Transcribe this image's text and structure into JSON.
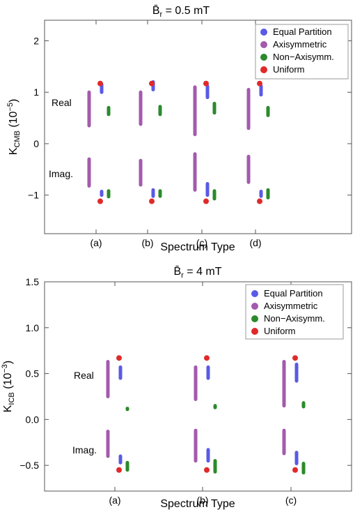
{
  "chart_data": [
    {
      "type": "scatter",
      "title": "B̄r = 0.5 mT",
      "title_main": "B̄",
      "title_sub": "r",
      "title_rest": " = 0.5 mT",
      "xlabel": "Spectrum Type",
      "ylabel_main": "K",
      "ylabel_sub": "CMB",
      "ylabel_rest": "  (10",
      "ylabel_exp": "−5",
      "ylabel_close": ")",
      "ylim": [
        -1.75,
        2.4
      ],
      "yticks": [
        2,
        1,
        0,
        -1
      ],
      "ytick_labels": [
        "2",
        "1",
        "0",
        "−1"
      ],
      "categories": [
        "(a)",
        "(b)",
        "(c)",
        "(d)"
      ],
      "annotations": [
        "Real",
        "Imag."
      ],
      "legend_position": "top-right",
      "legend": [
        "Equal Partition",
        "Axisymmetric",
        "Non−Axisymm.",
        "Uniform"
      ],
      "series": [
        {
          "name": "Equal Partition",
          "color": "#5a5ae6",
          "kind": "range",
          "real": [
            [
              1.0,
              1.15
            ],
            [
              1.05,
              1.2
            ],
            [
              0.9,
              1.12
            ],
            [
              0.95,
              1.12
            ]
          ],
          "imag": [
            [
              -0.93,
              -1.0
            ],
            [
              -0.9,
              -1.02
            ],
            [
              -0.78,
              -1.0
            ],
            [
              -0.93,
              -1.02
            ]
          ]
        },
        {
          "name": "Axisymmetric",
          "color": "#a35aad",
          "kind": "range",
          "real": [
            [
              0.35,
              1.0
            ],
            [
              0.38,
              1.0
            ],
            [
              0.18,
              1.1
            ],
            [
              0.3,
              1.05
            ]
          ],
          "imag": [
            [
              -0.3,
              -0.82
            ],
            [
              -0.33,
              -0.8
            ],
            [
              -0.2,
              -0.9
            ],
            [
              -0.25,
              -0.75
            ]
          ]
        },
        {
          "name": "Non−Axisymm.",
          "color": "#2b8a2b",
          "kind": "range",
          "real": [
            [
              0.57,
              0.7
            ],
            [
              0.57,
              0.72
            ],
            [
              0.6,
              0.78
            ],
            [
              0.55,
              0.7
            ]
          ],
          "imag": [
            [
              -0.92,
              -1.03
            ],
            [
              -0.92,
              -1.02
            ],
            [
              -0.92,
              -1.07
            ],
            [
              -0.9,
              -1.05
            ]
          ]
        },
        {
          "name": "Uniform",
          "color": "#e02a2a",
          "kind": "point",
          "real": [
            1.17,
            1.17,
            1.17,
            1.17
          ],
          "imag": [
            -1.12,
            -1.12,
            -1.12,
            -1.12
          ]
        }
      ]
    },
    {
      "type": "scatter",
      "title": "B̄r = 4 mT",
      "title_main": "B̄",
      "title_sub": "r",
      "title_rest": " = 4 mT",
      "xlabel": "Spectrum Type",
      "ylabel_main": "K",
      "ylabel_sub": "ICB",
      "ylabel_rest": "  (10",
      "ylabel_exp": "−3",
      "ylabel_close": ")",
      "ylim": [
        -0.78,
        1.5
      ],
      "yticks": [
        1.5,
        1.0,
        0.5,
        0.0,
        -0.5
      ],
      "ytick_labels": [
        "1.5",
        "1.0",
        "0.5",
        "0.0",
        "−0.5"
      ],
      "categories": [
        "(a)",
        "(b)",
        "(c)"
      ],
      "annotations": [
        "Real",
        "Imag."
      ],
      "legend_position": "top-right",
      "legend": [
        "Equal Partition",
        "Axisymmetric",
        "Non−Axisymm.",
        "Uniform"
      ],
      "series": [
        {
          "name": "Equal Partition",
          "color": "#5a5ae6",
          "kind": "range",
          "real": [
            [
              0.45,
              0.57
            ],
            [
              0.45,
              0.57
            ],
            [
              0.42,
              0.6
            ]
          ],
          "imag": [
            [
              -0.4,
              -0.47
            ],
            [
              -0.33,
              -0.45
            ],
            [
              -0.36,
              -0.48
            ]
          ]
        },
        {
          "name": "Axisymmetric",
          "color": "#a35aad",
          "kind": "range",
          "real": [
            [
              0.25,
              0.63
            ],
            [
              0.22,
              0.57
            ],
            [
              0.15,
              0.63
            ]
          ],
          "imag": [
            [
              -0.13,
              -0.4
            ],
            [
              -0.12,
              -0.45
            ],
            [
              -0.12,
              -0.37
            ]
          ]
        },
        {
          "name": "Non−Axisymm.",
          "color": "#2b8a2b",
          "kind": "range",
          "real": [
            [
              0.11,
              0.12
            ],
            [
              0.13,
              0.15
            ],
            [
              0.14,
              0.18
            ]
          ],
          "imag": [
            [
              -0.47,
              -0.55
            ],
            [
              -0.45,
              -0.57
            ],
            [
              -0.48,
              -0.58
            ]
          ]
        },
        {
          "name": "Uniform",
          "color": "#e02a2a",
          "kind": "point",
          "real": [
            0.67,
            0.67,
            0.67
          ],
          "imag": [
            -0.55,
            -0.55,
            -0.55
          ]
        }
      ]
    }
  ]
}
